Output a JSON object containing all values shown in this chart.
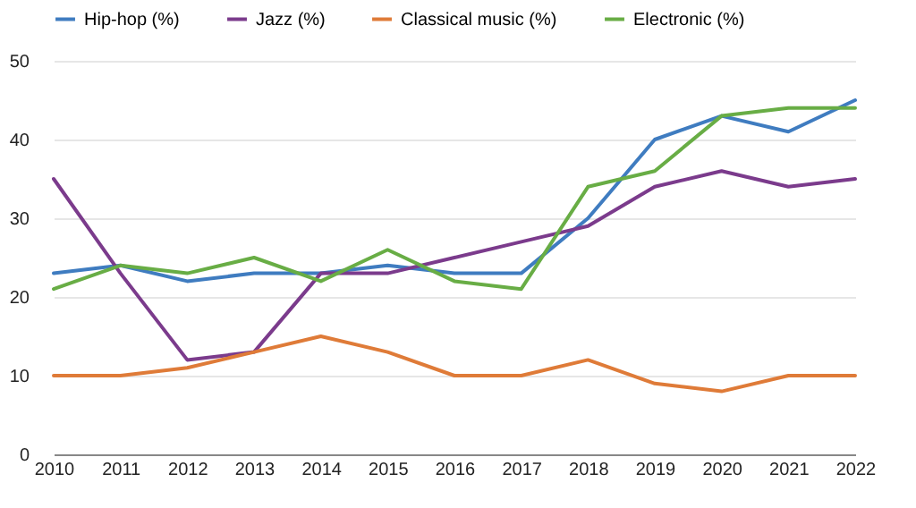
{
  "chart_data": {
    "type": "line",
    "categories": [
      "2010",
      "2011",
      "2012",
      "2013",
      "2014",
      "2015",
      "2016",
      "2017",
      "2018",
      "2019",
      "2020",
      "2021",
      "2022"
    ],
    "series": [
      {
        "name": "Hip-hop (%)",
        "color": "#3f7cc0",
        "values": [
          23,
          24,
          22,
          23,
          23,
          24,
          23,
          23,
          30,
          40,
          43,
          41,
          45
        ]
      },
      {
        "name": "Jazz (%)",
        "color": "#7b3b8c",
        "values": [
          35,
          23,
          12,
          13,
          23,
          23,
          25,
          27,
          29,
          34,
          36,
          34,
          35
        ]
      },
      {
        "name": "Classical music (%)",
        "color": "#df7b38",
        "values": [
          10,
          10,
          11,
          13,
          15,
          13,
          10,
          10,
          12,
          9,
          8,
          10,
          10
        ]
      },
      {
        "name": "Electronic (%)",
        "color": "#68ad45",
        "values": [
          21,
          24,
          23,
          25,
          22,
          26,
          22,
          21,
          34,
          36,
          43,
          44,
          44
        ]
      }
    ],
    "ylim": [
      0,
      50
    ],
    "yticks": [
      0,
      10,
      20,
      30,
      40,
      50
    ],
    "grid": "y",
    "legend": "top",
    "marker": "none"
  }
}
